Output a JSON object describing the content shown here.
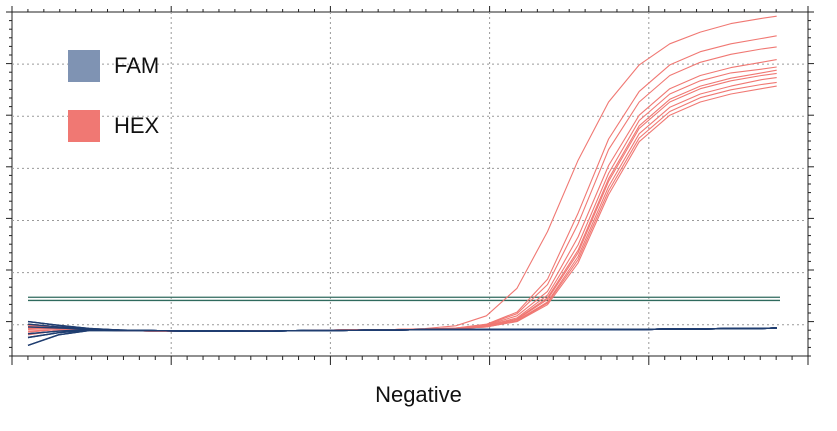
{
  "chart_data": {
    "type": "line",
    "xlabel": "Negative",
    "ylabel": "",
    "xlim": [
      0,
      50
    ],
    "ylim": [
      -0.5,
      6.0
    ],
    "grid": true,
    "legend_position": "top-left",
    "x_tick_count": 5,
    "y_tick_count": 6,
    "colors": {
      "FAM": "#7f93b3",
      "HEX": "#f07873",
      "FAM_line": "#1f3d70",
      "threshold": "#2f6a5e"
    },
    "legend": [
      {
        "name": "FAM",
        "color": "#7f93b3"
      },
      {
        "name": "HEX",
        "color": "#f07873"
      }
    ],
    "threshold_lines": [
      0.55,
      0.61
    ],
    "x": [
      0,
      2,
      4,
      6,
      8,
      10,
      12,
      14,
      16,
      18,
      20,
      22,
      24,
      26,
      28,
      30,
      32,
      34,
      36,
      38,
      40,
      42,
      44,
      46,
      48,
      49
    ],
    "series": [
      {
        "name": "HEX",
        "values": [
          0.02,
          0.02,
          0.0,
          -0.02,
          -0.03,
          -0.03,
          -0.03,
          -0.03,
          -0.02,
          -0.02,
          -0.01,
          0.0,
          0.0,
          0.02,
          0.07,
          0.26,
          0.78,
          1.85,
          3.2,
          4.3,
          5.0,
          5.4,
          5.62,
          5.78,
          5.88,
          5.92
        ]
      },
      {
        "name": "HEX",
        "values": [
          0.05,
          0.03,
          0.0,
          -0.02,
          -0.03,
          -0.03,
          -0.03,
          -0.03,
          -0.02,
          -0.02,
          -0.01,
          0.0,
          0.0,
          0.01,
          0.03,
          0.1,
          0.33,
          0.95,
          2.2,
          3.6,
          4.5,
          5.0,
          5.25,
          5.4,
          5.5,
          5.55
        ]
      },
      {
        "name": "HEX",
        "values": [
          -0.05,
          0.0,
          -0.01,
          -0.02,
          -0.03,
          -0.03,
          -0.03,
          -0.03,
          -0.02,
          -0.02,
          -0.01,
          0.0,
          0.0,
          0.01,
          0.03,
          0.09,
          0.3,
          0.85,
          2.0,
          3.4,
          4.3,
          4.8,
          5.05,
          5.2,
          5.3,
          5.34
        ]
      },
      {
        "name": "HEX",
        "values": [
          0.1,
          0.05,
          0.0,
          -0.02,
          -0.03,
          -0.03,
          -0.03,
          -0.03,
          -0.02,
          -0.02,
          -0.01,
          0.0,
          0.0,
          0.01,
          0.03,
          0.08,
          0.26,
          0.72,
          1.75,
          3.1,
          4.05,
          4.55,
          4.8,
          4.95,
          5.05,
          5.1
        ]
      },
      {
        "name": "HEX",
        "values": [
          0.0,
          0.02,
          0.0,
          -0.02,
          -0.03,
          -0.03,
          -0.03,
          -0.03,
          -0.02,
          -0.02,
          -0.01,
          0.0,
          0.0,
          0.01,
          0.02,
          0.07,
          0.22,
          0.65,
          1.6,
          2.95,
          3.95,
          4.45,
          4.7,
          4.85,
          4.92,
          4.96
        ]
      },
      {
        "name": "HEX",
        "values": [
          -0.1,
          -0.02,
          -0.01,
          -0.02,
          -0.03,
          -0.03,
          -0.03,
          -0.03,
          -0.02,
          -0.02,
          -0.01,
          0.0,
          0.0,
          0.01,
          0.02,
          0.06,
          0.2,
          0.6,
          1.5,
          2.85,
          3.85,
          4.35,
          4.6,
          4.75,
          4.85,
          4.9
        ]
      },
      {
        "name": "HEX",
        "values": [
          0.08,
          0.04,
          0.0,
          -0.02,
          -0.03,
          -0.03,
          -0.03,
          -0.03,
          -0.02,
          -0.02,
          -0.01,
          0.0,
          0.0,
          0.01,
          0.02,
          0.06,
          0.19,
          0.57,
          1.45,
          2.8,
          3.8,
          4.3,
          4.55,
          4.7,
          4.8,
          4.84
        ]
      },
      {
        "name": "HEX",
        "values": [
          0.03,
          0.02,
          0.0,
          -0.02,
          -0.03,
          -0.03,
          -0.03,
          -0.03,
          -0.02,
          -0.02,
          -0.01,
          0.0,
          0.0,
          0.01,
          0.02,
          0.05,
          0.17,
          0.52,
          1.38,
          2.7,
          3.7,
          4.2,
          4.45,
          4.6,
          4.72,
          4.76
        ]
      },
      {
        "name": "HEX",
        "values": [
          -0.03,
          0.0,
          -0.01,
          -0.02,
          -0.03,
          -0.03,
          -0.03,
          -0.03,
          -0.02,
          -0.02,
          -0.01,
          0.0,
          0.0,
          0.01,
          0.02,
          0.05,
          0.16,
          0.5,
          1.32,
          2.62,
          3.62,
          4.12,
          4.38,
          4.53,
          4.63,
          4.67
        ]
      },
      {
        "name": "HEX",
        "values": [
          0.06,
          0.03,
          0.0,
          -0.02,
          -0.03,
          -0.03,
          -0.03,
          -0.03,
          -0.02,
          -0.02,
          -0.01,
          0.0,
          0.0,
          0.01,
          0.02,
          0.05,
          0.15,
          0.47,
          1.26,
          2.55,
          3.55,
          4.05,
          4.3,
          4.45,
          4.55,
          4.6
        ]
      },
      {
        "name": "FAM",
        "values": [
          0.15,
          0.08,
          0.02,
          -0.01,
          -0.02,
          -0.03,
          -0.03,
          -0.03,
          -0.03,
          -0.02,
          -0.02,
          -0.01,
          -0.01,
          0.0,
          0.0,
          0.0,
          0.0,
          0.0,
          0.0,
          0.0,
          0.0,
          0.01,
          0.01,
          0.02,
          0.02,
          0.03
        ]
      },
      {
        "name": "FAM",
        "values": [
          -0.15,
          -0.06,
          -0.01,
          -0.02,
          -0.02,
          -0.03,
          -0.03,
          -0.03,
          -0.03,
          -0.02,
          -0.02,
          -0.01,
          -0.01,
          0.0,
          0.0,
          0.0,
          0.0,
          0.0,
          0.0,
          0.0,
          0.0,
          0.01,
          0.01,
          0.02,
          0.02,
          0.03
        ]
      },
      {
        "name": "FAM",
        "values": [
          0.1,
          0.05,
          0.01,
          -0.01,
          -0.02,
          -0.03,
          -0.03,
          -0.03,
          -0.03,
          -0.02,
          -0.02,
          -0.01,
          -0.01,
          0.0,
          0.0,
          0.0,
          0.0,
          0.0,
          0.0,
          0.0,
          0.0,
          0.01,
          0.01,
          0.02,
          0.02,
          0.03
        ]
      },
      {
        "name": "FAM",
        "values": [
          -0.08,
          -0.03,
          0.0,
          -0.02,
          -0.02,
          -0.03,
          -0.03,
          -0.03,
          -0.03,
          -0.02,
          -0.02,
          -0.01,
          -0.01,
          0.0,
          0.0,
          0.0,
          0.0,
          0.0,
          0.0,
          0.0,
          0.0,
          0.01,
          0.01,
          0.02,
          0.02,
          0.03
        ]
      },
      {
        "name": "FAM",
        "values": [
          0.05,
          0.03,
          0.01,
          -0.01,
          -0.02,
          -0.03,
          -0.03,
          -0.03,
          -0.03,
          -0.02,
          -0.02,
          -0.01,
          -0.01,
          0.0,
          0.0,
          0.0,
          0.0,
          0.0,
          0.0,
          0.0,
          0.0,
          0.01,
          0.01,
          0.02,
          0.02,
          0.03
        ]
      },
      {
        "name": "FAM",
        "values": [
          -0.3,
          -0.1,
          -0.02,
          -0.02,
          -0.02,
          -0.03,
          -0.03,
          -0.03,
          -0.03,
          -0.02,
          -0.02,
          -0.01,
          -0.01,
          0.0,
          0.0,
          0.0,
          0.0,
          0.0,
          0.0,
          0.0,
          0.0,
          0.01,
          0.01,
          0.02,
          0.02,
          0.03
        ]
      }
    ]
  }
}
